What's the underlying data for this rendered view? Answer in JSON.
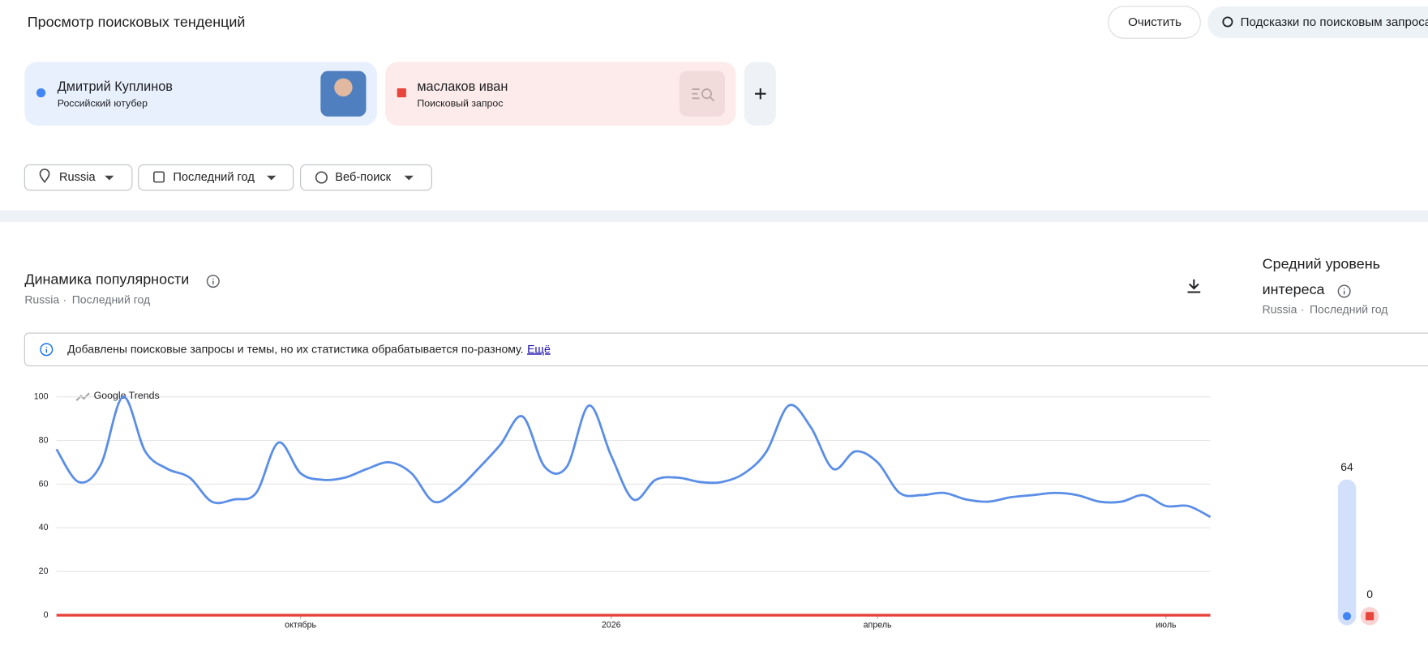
{
  "header": {
    "title": "Просмотр поисковых тенденций",
    "clear": "Очистить",
    "suggest": "Подсказки по поисковым запросам"
  },
  "terms": [
    {
      "name": "Дмитрий Куплинов",
      "kind": "Российский ютубер"
    },
    {
      "name": "маслаков иван",
      "kind": "Поисковый запрос"
    }
  ],
  "filters": [
    "Russia",
    "Последний год",
    "Веб-поиск"
  ],
  "notice": {
    "text": "Добавлены поисковые запросы и темы, но их статистика обрабатывается по-разному.",
    "link": "Ещё"
  },
  "watermark": "Google Trends",
  "chart_data": [
    {
      "type": "line",
      "title": "Динамика популярности",
      "region": "Russia",
      "period": "Последний год",
      "categories": [
        null,
        null,
        null,
        null,
        null,
        null,
        null,
        null,
        null,
        null,
        null,
        "октябрь",
        null,
        null,
        null,
        null,
        null,
        null,
        null,
        null,
        null,
        null,
        null,
        null,
        null,
        "2026",
        null,
        null,
        null,
        null,
        null,
        null,
        null,
        null,
        null,
        null,
        null,
        "апрель",
        null,
        null,
        null,
        null,
        null,
        null,
        null,
        null,
        null,
        null,
        null,
        null,
        "июль",
        null,
        null
      ],
      "series": [
        {
          "name": "Дмитрий Куплинов",
          "color": "#5b8ee6",
          "values": [
            76,
            61,
            69,
            100,
            75,
            67,
            63,
            52,
            53,
            56,
            79,
            65,
            62,
            63,
            67,
            70,
            65,
            52,
            57,
            67,
            78,
            91,
            68,
            68,
            96,
            73,
            53,
            62,
            63,
            61,
            61,
            65,
            75,
            96,
            86,
            67,
            75,
            70,
            56,
            55,
            56,
            53,
            52,
            54,
            55,
            56,
            55,
            52,
            52,
            55,
            50,
            50,
            45
          ]
        },
        {
          "name": "маслаков иван",
          "color": "#e8453c",
          "values": [
            0,
            0,
            0,
            0,
            0,
            0,
            0,
            0,
            0,
            0,
            0,
            0,
            0,
            0,
            0,
            0,
            0,
            0,
            0,
            0,
            0,
            0,
            0,
            0,
            0,
            0,
            0,
            0,
            0,
            0,
            0,
            0,
            0,
            0,
            0,
            0,
            0,
            0,
            0,
            0,
            0,
            0,
            0,
            0,
            0,
            0,
            0,
            0,
            0,
            0,
            0,
            0,
            0
          ]
        }
      ],
      "ylim": [
        0,
        100
      ],
      "yticks": [
        0,
        20,
        40,
        60,
        80,
        100
      ],
      "grid": true
    },
    {
      "type": "bar",
      "title": "Средний уровень интереса",
      "region": "Russia",
      "period": "Последний год",
      "values": [
        64,
        0
      ],
      "colors": [
        "#4285f4",
        "#e8453c"
      ],
      "track_colors": [
        "#d2e0fb",
        "#f9d3d1"
      ],
      "ylim": [
        0,
        100
      ]
    }
  ]
}
